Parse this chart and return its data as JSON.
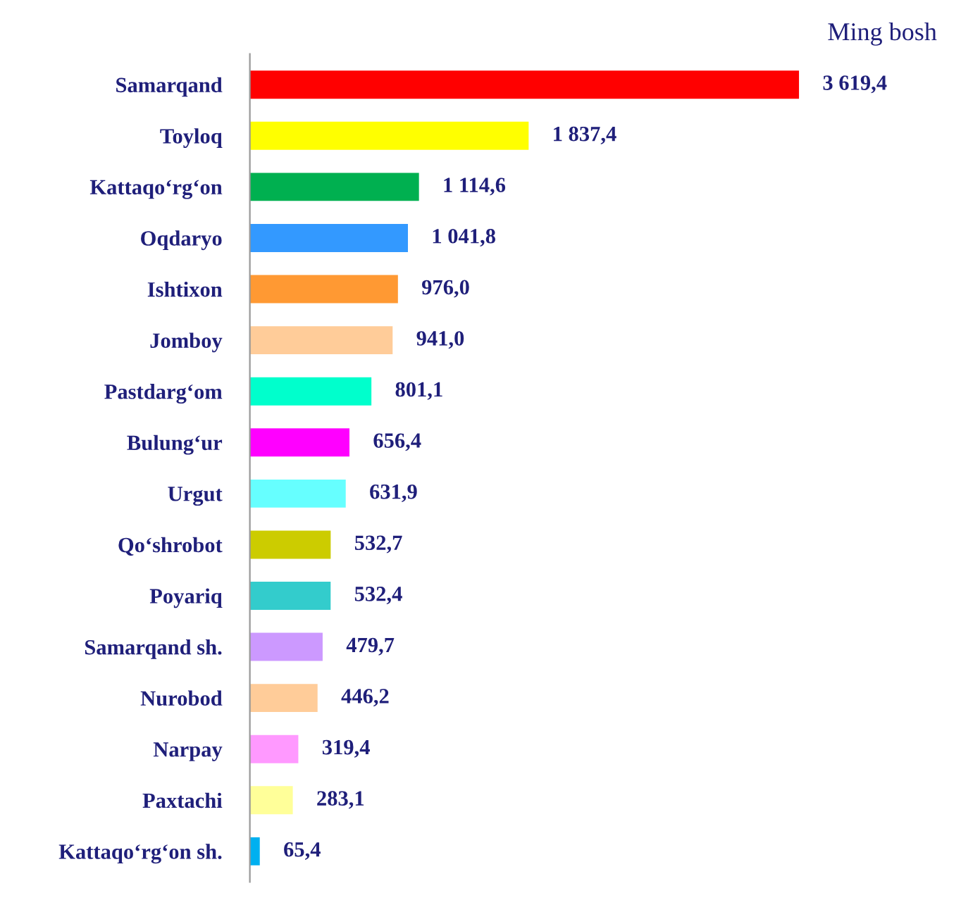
{
  "chart_data": {
    "type": "bar",
    "orientation": "horizontal",
    "annotations": [
      "Ming bosh"
    ],
    "categories": [
      "Samarqand",
      "Toyloq",
      "Kattaqo‘rg‘on",
      "Oqdaryo",
      "Ishtixon",
      "Jomboy",
      "Pastdarg‘om",
      "Bulung‘ur",
      "Urgut",
      "Qo‘shrobot",
      "Poyariq",
      "Samarqand sh.",
      "Nurobod",
      "Narpay",
      "Paxtachi",
      "Kattaqo‘rg‘on sh."
    ],
    "values": [
      3619.4,
      1837.4,
      1114.6,
      1041.8,
      976.0,
      941.0,
      801.1,
      656.4,
      631.9,
      532.7,
      532.4,
      479.7,
      446.2,
      319.4,
      283.1,
      65.4
    ],
    "value_labels": [
      "3 619,4",
      "1 837,4",
      "1 114,6",
      "1 041,8",
      "976,0",
      "941,0",
      "801,1",
      "656,4",
      "631,9",
      "532,7",
      "532,4",
      "479,7",
      "446,2",
      "319,4",
      "283,1",
      "65,4"
    ],
    "colors": [
      "#ff0000",
      "#ffff00",
      "#00b050",
      "#3399ff",
      "#ff9933",
      "#ffcc99",
      "#00ffcc",
      "#ff00ff",
      "#66ffff",
      "#cccc00",
      "#33cccc",
      "#cc99ff",
      "#ffcc99",
      "#ff99ff",
      "#ffff99",
      "#00b0f0"
    ],
    "grid": false,
    "legend": false
  }
}
